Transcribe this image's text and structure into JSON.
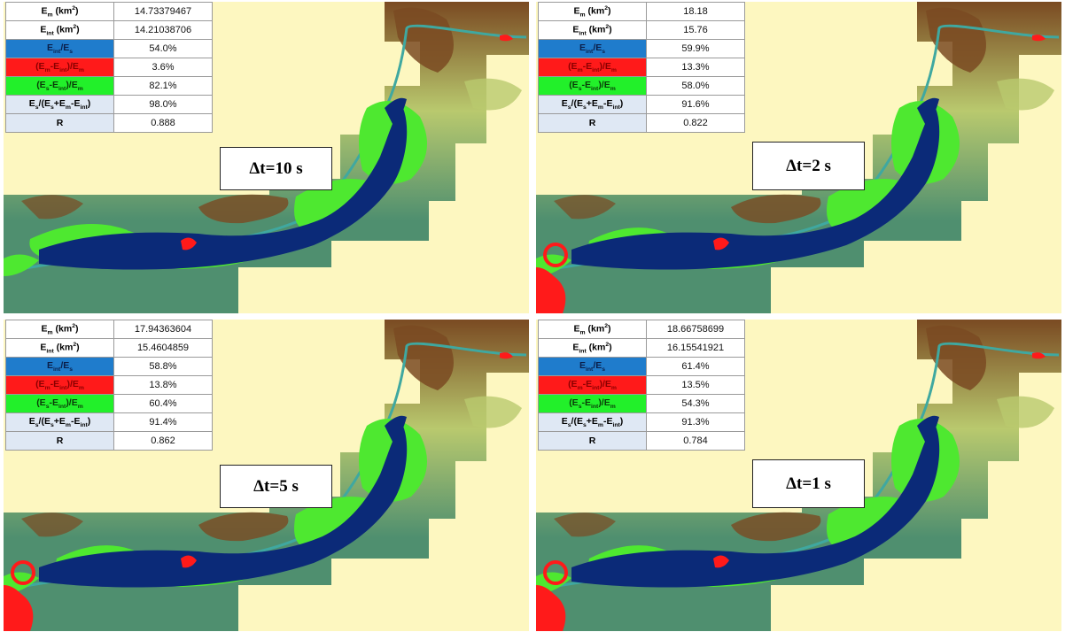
{
  "panels": [
    {
      "label": "Δt=10 s",
      "rows": [
        {
          "label": "E_m (km²)",
          "value": "14.73379467"
        },
        {
          "label": "E_int (km²)",
          "value": "14.21038706"
        },
        {
          "label": "E_int/E_s",
          "value": "54.0%"
        },
        {
          "label": "(E_m-E_int)/E_m",
          "value": "3.6%"
        },
        {
          "label": "(E_s-E_int)/E_m",
          "value": "82.1%"
        },
        {
          "label": "E_s/(E_s+E_m-E_int)",
          "value": "98.0%"
        },
        {
          "label": "R",
          "value": "0.888"
        }
      ]
    },
    {
      "label": "Δt=2 s",
      "rows": [
        {
          "label": "E_m (km²)",
          "value": "18.18"
        },
        {
          "label": "E_int (km²)",
          "value": "15.76"
        },
        {
          "label": "E_int/E_s",
          "value": "59.9%"
        },
        {
          "label": "(E_m-E_int)/E_m",
          "value": "13.3%"
        },
        {
          "label": "(E_s-E_int)/E_m",
          "value": "58.0%"
        },
        {
          "label": "E_s/(E_s+E_m-E_int)",
          "value": "91.6%"
        },
        {
          "label": "R",
          "value": "0.822"
        }
      ]
    },
    {
      "label": "Δt=5 s",
      "rows": [
        {
          "label": "E_m (km²)",
          "value": "17.94363604"
        },
        {
          "label": "E_int (km²)",
          "value": "15.4604859"
        },
        {
          "label": "E_int/E_s",
          "value": "58.8%"
        },
        {
          "label": "(E_m-E_int)/E_m",
          "value": "13.8%"
        },
        {
          "label": "(E_s-E_int)/E_m",
          "value": "60.4%"
        },
        {
          "label": "E_s/(E_s+E_m-E_int)",
          "value": "91.4%"
        },
        {
          "label": "R",
          "value": "0.862"
        }
      ]
    },
    {
      "label": "Δt=1 s",
      "rows": [
        {
          "label": "E_m (km²)",
          "value": "18.66758699"
        },
        {
          "label": "E_int (km²)",
          "value": "16.15541921"
        },
        {
          "label": "E_int/E_s",
          "value": "61.4%"
        },
        {
          "label": "(E_m-E_int)/E_m",
          "value": "13.5%"
        },
        {
          "label": "(E_s-E_int)/E_m",
          "value": "54.3%"
        },
        {
          "label": "E_s/(E_s+E_m-E_int)",
          "value": "91.3%"
        },
        {
          "label": "R",
          "value": "0.784"
        }
      ]
    }
  ],
  "colors": {
    "background": "#fdf7c0",
    "terrain_low": "#4f8f6f",
    "terrain_mid": "#b9c96e",
    "terrain_high": "#7a4a22",
    "intersection": "#0b2a78",
    "model_only": "#ff1a1a",
    "sat_only": "#4ee830",
    "river": "#3fa8a0"
  }
}
